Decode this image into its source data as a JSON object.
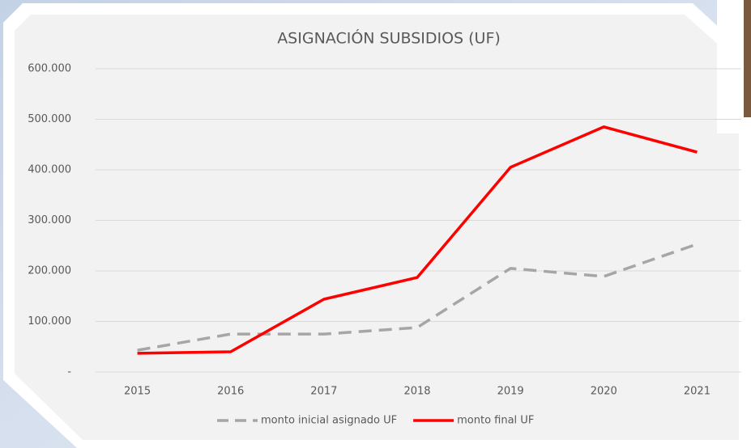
{
  "chart_data": {
    "type": "line",
    "title": "ASIGNACIÓN SUBSIDIOS (UF)",
    "categories": [
      "2015",
      "2016",
      "2017",
      "2018",
      "2019",
      "2020",
      "2021"
    ],
    "series": [
      {
        "name": "monto inicial asignado UF",
        "color": "#a6a6a6",
        "dash": true,
        "values": [
          43000,
          75000,
          75000,
          88000,
          205000,
          189000,
          253000
        ]
      },
      {
        "name": "monto final UF",
        "color": "#ff0000",
        "dash": false,
        "values": [
          37000,
          40000,
          144000,
          187000,
          405000,
          485000,
          435000
        ]
      }
    ],
    "ylim": [
      0,
      600000
    ],
    "yticks": [
      {
        "value": 0,
        "label": "-"
      },
      {
        "value": 100000,
        "label": "100.000"
      },
      {
        "value": 200000,
        "label": "200.000"
      },
      {
        "value": 300000,
        "label": "300.000"
      },
      {
        "value": 400000,
        "label": "400.000"
      },
      {
        "value": 500000,
        "label": "500.000"
      },
      {
        "value": 600000,
        "label": "600.000"
      }
    ],
    "grid": true,
    "legend": "bottom"
  }
}
